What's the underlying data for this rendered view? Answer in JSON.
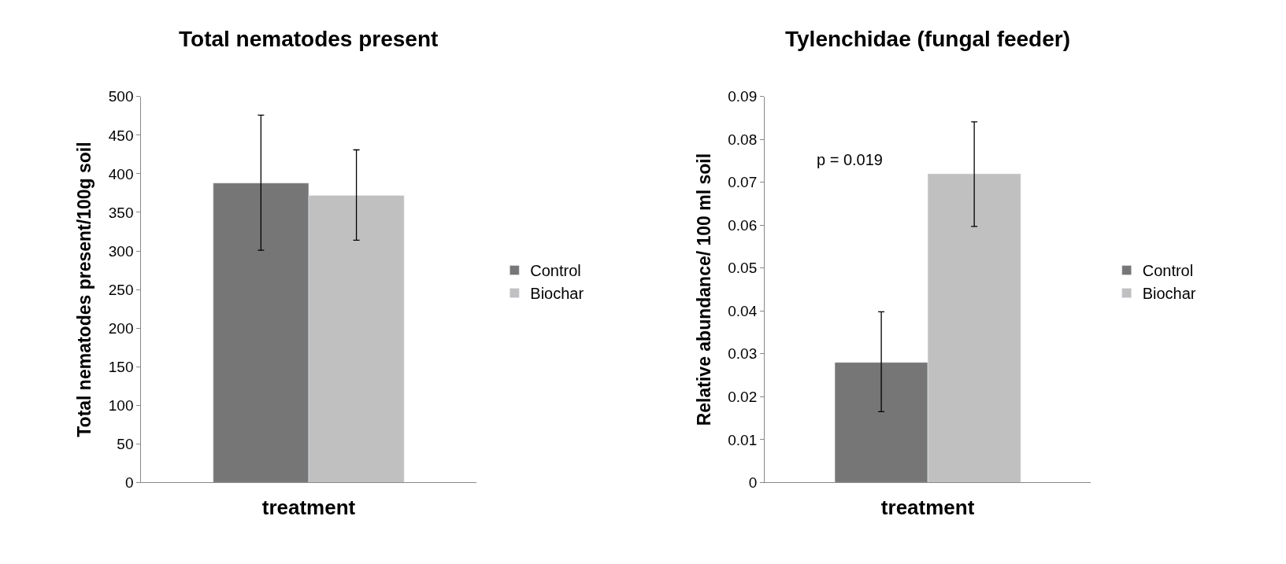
{
  "chart_data": [
    {
      "type": "bar",
      "title": "Total nematodes present",
      "xlabel": "treatment",
      "ylabel": "Total nematodes present/100g soil",
      "categories": [
        null
      ],
      "series": [
        {
          "name": "Control",
          "color": "#767676",
          "values": [
            388
          ],
          "errors": [
            [
              301,
              476
            ]
          ]
        },
        {
          "name": "Biochar",
          "color": "#c0c0c0",
          "values": [
            372
          ],
          "errors": [
            [
              314,
              431
            ]
          ]
        }
      ],
      "ylim": [
        0,
        500
      ],
      "yticks": [
        0,
        50,
        100,
        150,
        200,
        250,
        300,
        350,
        400,
        450,
        500
      ],
      "legend": "right"
    },
    {
      "type": "bar",
      "title": "Tylenchidae (fungal feeder)",
      "xlabel": "treatment",
      "ylabel": "Relative abundance/ 100 ml soil",
      "categories": [
        null
      ],
      "series": [
        {
          "name": "Control",
          "color": "#767676",
          "values": [
            0.028
          ],
          "errors": [
            [
              0.0165,
              0.0398
            ]
          ]
        },
        {
          "name": "Biochar",
          "color": "#c0c0c0",
          "values": [
            0.072
          ],
          "errors": [
            [
              0.0597,
              0.0841
            ]
          ]
        }
      ],
      "ylim": [
        0,
        0.09
      ],
      "yticks": [
        0,
        0.01,
        0.02,
        0.03,
        0.04,
        0.05,
        0.06,
        0.07,
        0.08,
        0.09
      ],
      "legend": "right",
      "annotations": [
        "p = 0.019"
      ]
    }
  ]
}
